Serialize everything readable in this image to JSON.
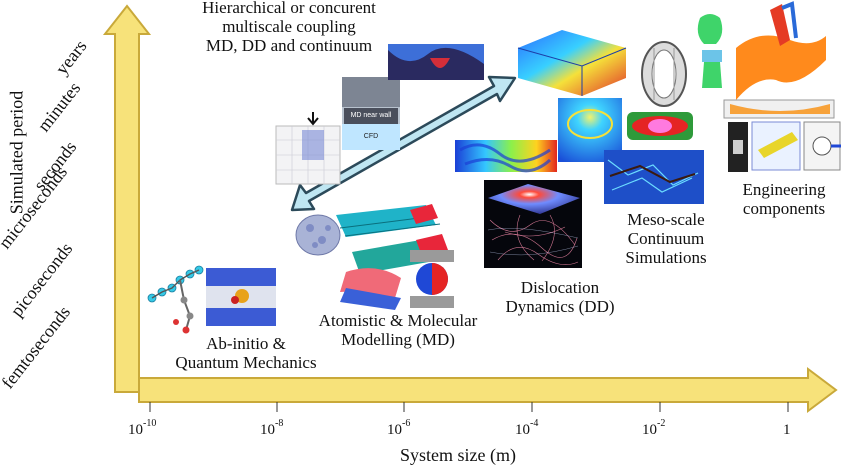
{
  "axes": {
    "x_label": "System size (m)",
    "y_label": "Simulated period",
    "x_ticks": [
      {
        "base": "10",
        "exp": "-10"
      },
      {
        "base": "10",
        "exp": "-8"
      },
      {
        "base": "10",
        "exp": "-6"
      },
      {
        "base": "10",
        "exp": "-4"
      },
      {
        "base": "10",
        "exp": "-2"
      },
      {
        "base": "1",
        "exp": ""
      }
    ],
    "y_ticks": [
      "femtoseconds",
      "picoseconds",
      "microseconds",
      "seconds",
      "minutes",
      "years"
    ]
  },
  "scales": {
    "ab_initio": "Ab-initio &\nQuantum Mechanics",
    "atomistic": "Atomistic & Molecular\nModelling (MD)",
    "dislocation": "Dislocation\nDynamics (DD)",
    "mesoscale": "Meso-scale\nContinuum\nSimulations",
    "engineering": "Engineering\ncomponents",
    "multiscale": "Hierarchical or concurent\nmultiscale coupling\nMD, DD and continuum"
  },
  "inset_labels": {
    "md_near_wall": "MD near wall",
    "cfd": "CFD"
  },
  "colors": {
    "axis_arrow": "#f7e27a",
    "axis_arrow_edge": "#c9a93a",
    "coupling_arrow": "#bfe6f2",
    "coupling_arrow_edge": "#2c4a5a"
  }
}
